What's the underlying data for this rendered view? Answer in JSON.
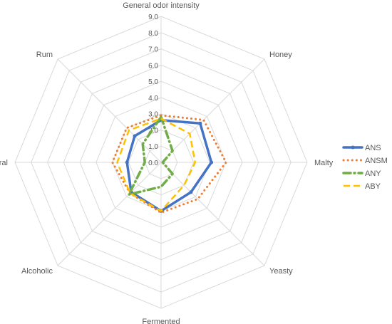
{
  "chart_data": {
    "type": "radar",
    "axes": [
      "General odor intensity",
      "Honey",
      "Malty",
      "Yeasty",
      "Fermented",
      "Alcoholic",
      "Floral",
      "Rum"
    ],
    "ticks": [
      "0.0",
      "1.0",
      "2.0",
      "3.0",
      "4.0",
      "5.0",
      "6.0",
      "7.0",
      "8.0",
      "9.0"
    ],
    "range": [
      0,
      9
    ],
    "grid": true,
    "legend_position": "right",
    "series": [
      {
        "name": "ANS",
        "color": "#4472C4",
        "style": "solid-thick",
        "values": [
          2.6,
          3.4,
          3.1,
          2.6,
          3.0,
          2.6,
          2.1,
          2.3
        ]
      },
      {
        "name": "ANSM",
        "color": "#ED7D31",
        "style": "dotted",
        "values": [
          2.9,
          3.7,
          4.0,
          3.2,
          3.1,
          2.7,
          3.0,
          3.0
        ]
      },
      {
        "name": "ANY",
        "color": "#70AD47",
        "style": "dash-dot",
        "values": [
          2.8,
          1.0,
          0.1,
          1.0,
          1.5,
          2.8,
          1.0,
          1.6
        ]
      },
      {
        "name": "ABY",
        "color": "#FFC000",
        "style": "dashed",
        "values": [
          2.7,
          2.5,
          2.1,
          2.0,
          3.0,
          2.7,
          2.7,
          2.8
        ]
      }
    ]
  }
}
